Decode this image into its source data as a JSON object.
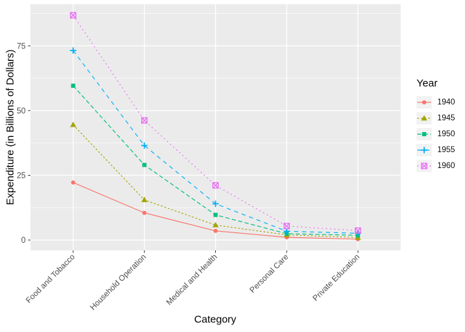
{
  "chart_data": {
    "type": "line",
    "title": "",
    "xlabel": "Category",
    "ylabel": "Expenditure (in Billions of Dollars)",
    "legend_title": "Year",
    "legend_position": "right",
    "grid": true,
    "categories": [
      "Food and Tobacco",
      "Household Operation",
      "Medical and Health",
      "Personal Care",
      "Private Education"
    ],
    "y_ticks": [
      0,
      25,
      50,
      75
    ],
    "y_minor_ticks": [
      12.5,
      37.5,
      62.5,
      87.5
    ],
    "ylim": [
      -4.0,
      91.1
    ],
    "series": [
      {
        "name": "1940",
        "color": "#F8766D",
        "marker": "circle",
        "dash": "solid",
        "values": [
          22.2,
          10.5,
          3.53,
          1.04,
          0.341
        ]
      },
      {
        "name": "1945",
        "color": "#A3A500",
        "marker": "triangle",
        "dash": "2.5 2.8",
        "values": [
          44.5,
          15.5,
          5.76,
          1.98,
          0.974
        ]
      },
      {
        "name": "1950",
        "color": "#00BF7D",
        "marker": "square",
        "dash": "6 3.5",
        "values": [
          59.6,
          29.0,
          9.71,
          2.45,
          1.8
        ]
      },
      {
        "name": "1955",
        "color": "#00B0F6",
        "marker": "plus",
        "dash": "6 5.5",
        "values": [
          73.2,
          36.5,
          14.0,
          3.4,
          2.6
        ]
      },
      {
        "name": "1960",
        "color": "#E76BF3",
        "marker": "square-x",
        "dash": "1.8 4.2",
        "values": [
          86.8,
          46.2,
          21.1,
          5.4,
          3.64
        ]
      }
    ],
    "theme": {
      "panel_bg": "#EBEBEB",
      "grid_color": "#FFFFFF",
      "legend_key_bg": "#F2F2F2",
      "axis_text_color": "#4D4D4D",
      "tick_color": "#333333",
      "title_color": "#000000"
    }
  }
}
